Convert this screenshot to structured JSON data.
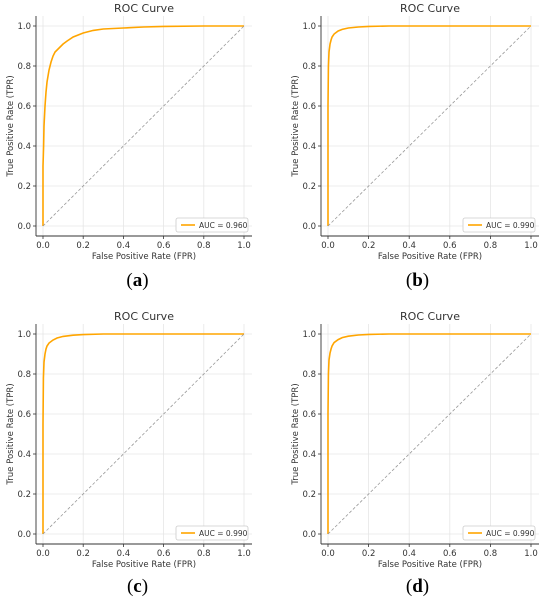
{
  "chart_data": [
    {
      "type": "line",
      "panel_label": "a",
      "title": "ROC Curve",
      "xlabel": "False Positive Rate (FPR)",
      "ylabel": "True Positive Rate (TPR)",
      "xlim": [
        0,
        1
      ],
      "ylim": [
        0,
        1
      ],
      "xticks": [
        "0.0",
        "0.2",
        "0.4",
        "0.6",
        "0.8",
        "1.0"
      ],
      "yticks": [
        "0.0",
        "0.2",
        "0.4",
        "0.6",
        "0.8",
        "1.0"
      ],
      "grid": true,
      "legend_position": "bottom-right",
      "series": [
        {
          "name": "AUC = 0.960",
          "color": "#ffa500",
          "style": "solid",
          "x": [
            0,
            0,
            0.003,
            0.005,
            0.01,
            0.015,
            0.02,
            0.03,
            0.04,
            0.05,
            0.06,
            0.08,
            0.1,
            0.12,
            0.15,
            0.2,
            0.25,
            0.3,
            0.4,
            0.5,
            0.6,
            0.8,
            1.0
          ],
          "y": [
            0,
            0.3,
            0.4,
            0.5,
            0.6,
            0.67,
            0.72,
            0.78,
            0.82,
            0.85,
            0.87,
            0.89,
            0.91,
            0.925,
            0.945,
            0.965,
            0.978,
            0.985,
            0.99,
            0.995,
            0.998,
            1.0,
            1.0
          ]
        },
        {
          "color": "#999999",
          "style": "dashed",
          "x": [
            0,
            1
          ],
          "y": [
            0,
            1
          ]
        }
      ]
    },
    {
      "type": "line",
      "panel_label": "b",
      "title": "ROC Curve",
      "xlabel": "False Positive Rate (FPR)",
      "ylabel": "True Positive Rate (TPR)",
      "xlim": [
        0,
        1
      ],
      "ylim": [
        0,
        1
      ],
      "xticks": [
        "0.0",
        "0.2",
        "0.4",
        "0.6",
        "0.8",
        "1.0"
      ],
      "yticks": [
        "0.0",
        "0.2",
        "0.4",
        "0.6",
        "0.8",
        "1.0"
      ],
      "grid": true,
      "legend_position": "bottom-right",
      "series": [
        {
          "name": "AUC = 0.990",
          "color": "#ffa500",
          "style": "solid",
          "x": [
            0,
            0,
            0.002,
            0.005,
            0.01,
            0.015,
            0.02,
            0.03,
            0.05,
            0.07,
            0.1,
            0.15,
            0.2,
            0.3,
            0.5,
            1.0
          ],
          "y": [
            0,
            0.6,
            0.8,
            0.87,
            0.91,
            0.93,
            0.945,
            0.96,
            0.975,
            0.983,
            0.99,
            0.995,
            0.998,
            1.0,
            1.0,
            1.0
          ]
        },
        {
          "color": "#999999",
          "style": "dashed",
          "x": [
            0,
            1
          ],
          "y": [
            0,
            1
          ]
        }
      ]
    },
    {
      "type": "line",
      "panel_label": "c",
      "title": "ROC Curve",
      "xlabel": "False Positive Rate (FPR)",
      "ylabel": "True Positive Rate (TPR)",
      "xlim": [
        0,
        1
      ],
      "ylim": [
        0,
        1
      ],
      "xticks": [
        "0.0",
        "0.2",
        "0.4",
        "0.6",
        "0.8",
        "1.0"
      ],
      "yticks": [
        "0.0",
        "0.2",
        "0.4",
        "0.6",
        "0.8",
        "1.0"
      ],
      "grid": true,
      "legend_position": "bottom-right",
      "series": [
        {
          "name": "AUC = 0.990",
          "color": "#ffa500",
          "style": "solid",
          "x": [
            0,
            0,
            0.002,
            0.005,
            0.01,
            0.015,
            0.02,
            0.03,
            0.05,
            0.07,
            0.1,
            0.15,
            0.2,
            0.3,
            0.5,
            1.0
          ],
          "y": [
            0,
            0.55,
            0.78,
            0.86,
            0.9,
            0.925,
            0.94,
            0.955,
            0.97,
            0.98,
            0.988,
            0.994,
            0.997,
            1.0,
            1.0,
            1.0
          ]
        },
        {
          "color": "#999999",
          "style": "dashed",
          "x": [
            0,
            1
          ],
          "y": [
            0,
            1
          ]
        }
      ]
    },
    {
      "type": "line",
      "panel_label": "d",
      "title": "ROC Curve",
      "xlabel": "False Positive Rate (FPR)",
      "ylabel": "True Positive Rate (TPR)",
      "xlim": [
        0,
        1
      ],
      "ylim": [
        0,
        1
      ],
      "xticks": [
        "0.0",
        "0.2",
        "0.4",
        "0.6",
        "0.8",
        "1.0"
      ],
      "yticks": [
        "0.0",
        "0.2",
        "0.4",
        "0.6",
        "0.8",
        "1.0"
      ],
      "grid": true,
      "legend_position": "bottom-right",
      "series": [
        {
          "name": "AUC = 0.990",
          "color": "#ffa500",
          "style": "solid",
          "x": [
            0,
            0,
            0.002,
            0.005,
            0.01,
            0.015,
            0.02,
            0.03,
            0.05,
            0.07,
            0.1,
            0.15,
            0.2,
            0.3,
            0.5,
            1.0
          ],
          "y": [
            0,
            0.6,
            0.8,
            0.87,
            0.905,
            0.925,
            0.94,
            0.957,
            0.972,
            0.982,
            0.989,
            0.995,
            0.998,
            1.0,
            1.0,
            1.0
          ]
        },
        {
          "color": "#999999",
          "style": "dashed",
          "x": [
            0,
            1
          ],
          "y": [
            0,
            1
          ]
        }
      ]
    }
  ]
}
